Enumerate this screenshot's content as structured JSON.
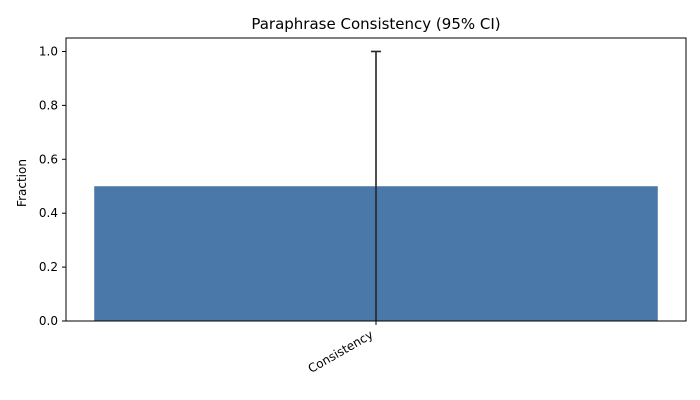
{
  "chart_data": {
    "type": "bar",
    "title": "Paraphrase Consistency (95% CI)",
    "xlabel": "",
    "ylabel": "Fraction",
    "categories": [
      "Consistency"
    ],
    "values": [
      0.5
    ],
    "error_bars": [
      {
        "low": 0.0,
        "high": 1.0
      }
    ],
    "ylim": [
      0.0,
      1.05
    ],
    "yticks": [
      "0.0",
      "0.2",
      "0.4",
      "0.6",
      "0.8",
      "1.0"
    ],
    "grid": false,
    "legend": "none",
    "colors": {
      "bar": "#4a78a8",
      "error_bar": "#262626",
      "axes": "#000000"
    }
  }
}
